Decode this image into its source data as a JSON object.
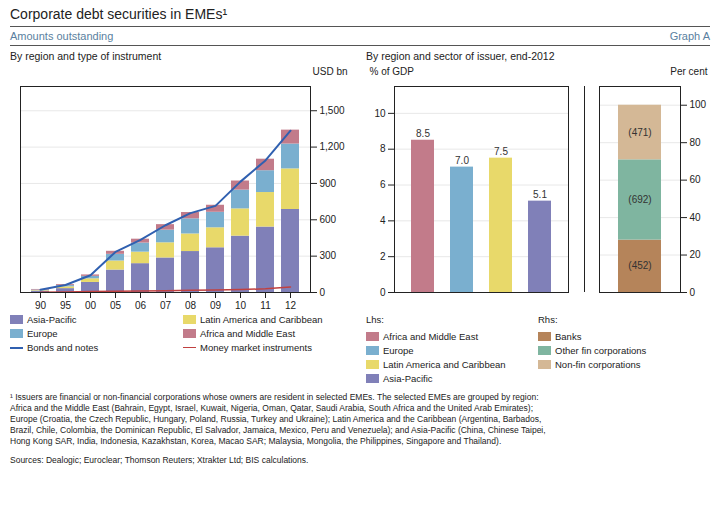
{
  "title": "Corporate debt securities in EMEs¹",
  "subtitle": "Amounts outstanding",
  "annotations": [
    "Graph A"
  ],
  "footnotes": [
    "¹ Issuers are financial or non-financial corporations whose owners are resident in selected EMEs. The selected EMEs are grouped by region:",
    "Africa and the Middle East (Bahrain, Egypt, Israel, Kuwait, Nigeria, Oman, Qatar, Saudi Arabia, South Africa and the United Arab Emirates);",
    "Europe (Croatia, the Czech Republic, Hungary, Poland, Russia, Turkey and Ukraine); Latin America and the Caribbean (Argentina, Barbados,",
    "Brazil, Chile, Colombia, the Dominican Republic, El Salvador, Jamaica, Mexico, Peru and Venezuela); and Asia-Pacific (China, Chinese Taipei,",
    "Hong Kong SAR, India, Indonesia, Kazakhstan, Korea, Macao SAR; Malaysia, Mongolia, the Philippines, Singapore and Thailand)."
  ],
  "source": "Sources: Dealogic; Euroclear; Thomson Reuters; Xtrakter Ltd; BIS calculations.",
  "chart_data": [
    {
      "type": "bar",
      "title": "By region and type of instrument",
      "ylabel": "USD bn",
      "stacked": true,
      "categories": [
        "90",
        "95",
        "00",
        "05",
        "06",
        "07",
        "08",
        "09",
        "10",
        "11",
        "12"
      ],
      "series": [
        {
          "name": "Asia-Pacific",
          "type": "bar",
          "color": "#8080b8",
          "values": [
            10,
            32,
            83,
            185,
            238,
            285,
            338,
            369,
            465,
            540,
            685
          ]
        },
        {
          "name": "Latin America and Caribbean",
          "type": "bar",
          "color": "#e8d96a",
          "values": [
            5,
            15,
            30,
            75,
            95,
            125,
            145,
            165,
            225,
            285,
            335
          ]
        },
        {
          "name": "Europe",
          "type": "bar",
          "color": "#7aafcf",
          "values": [
            5,
            10,
            20,
            55,
            75,
            105,
            125,
            128,
            155,
            180,
            205
          ]
        },
        {
          "name": "Africa and Middle East",
          "type": "bar",
          "color": "#c27b8a",
          "values": [
            5,
            8,
            12,
            25,
            32,
            45,
            52,
            58,
            75,
            95,
            115
          ]
        },
        {
          "name": "Bonds and notes",
          "type": "line",
          "color": "#3060b0",
          "values": [
            22,
            62,
            142,
            335,
            435,
            555,
            655,
            715,
            915,
            1090,
            1335
          ]
        },
        {
          "name": "Money market instruments",
          "type": "line",
          "color": "#c04040",
          "values": [
            3,
            5,
            8,
            10,
            12,
            15,
            18,
            20,
            25,
            30,
            45
          ]
        }
      ],
      "ylim": [
        0,
        1700
      ],
      "yticks": [
        0,
        300,
        600,
        900,
        {
          "value": 1200,
          "label": "1,200"
        },
        {
          "value": 1500,
          "label": "1,500"
        }
      ],
      "grid": true,
      "legend": "bottom"
    },
    {
      "type": "bar",
      "title": "By region and sector of issuer, end-2012",
      "ylabel": "% of GDP",
      "annotations": [
        "Lhs:"
      ],
      "categories": [
        "Africa and Middle East",
        "Europe",
        "Latin America and Caribbean",
        "Asia-Pacific"
      ],
      "values": [
        8.5,
        7.0,
        7.5,
        5.1
      ],
      "value_labels": [
        "8.5",
        "7.0",
        "7.5",
        "5.1"
      ],
      "colors": [
        "#c27b8a",
        "#7aafcf",
        "#e8d96a",
        "#8080b8"
      ],
      "data_labels": true,
      "tick_labels": "y",
      "ylim": [
        0,
        11.5
      ],
      "yticks": [
        0,
        2,
        4,
        6,
        8,
        10
      ],
      "grid": true,
      "legend": "bottom"
    },
    {
      "type": "bar",
      "ylabel": "Per cent",
      "annotations": [
        "Rhs:"
      ],
      "stacked": true,
      "categories": [
        null
      ],
      "series": [
        {
          "name": "Banks",
          "color": "#b5845a",
          "values": [
            27.9876160990712
          ],
          "annotations": [
            "(452)"
          ]
        },
        {
          "name": "Other fin corporations",
          "color": "#7fb5a0",
          "values": [
            42.8482972136223
          ],
          "annotations": [
            "(692)"
          ]
        },
        {
          "name": "Non-fin corporations",
          "color": "#d4b896",
          "values": [
            29.1640866873065
          ],
          "annotations": [
            "(471)"
          ]
        }
      ],
      "tick_labels": "y",
      "ylim": [
        0,
        110
      ],
      "yticks": [
        0,
        20,
        40,
        60,
        80,
        100
      ],
      "grid": true,
      "legend": "bottom"
    }
  ]
}
